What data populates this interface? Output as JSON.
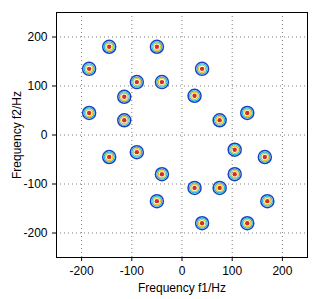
{
  "chart_data": {
    "type": "scatter",
    "xlabel": "Frequency f1/Hz",
    "ylabel": "Frequency f2/Hz",
    "x": [
      -145,
      -50,
      40,
      -185,
      -90,
      -40,
      25,
      -115,
      -185,
      -115,
      130,
      75,
      105,
      -90,
      -145,
      165,
      105,
      -40,
      170,
      -50,
      25,
      75,
      40,
      130
    ],
    "values": [
      180,
      180,
      135,
      135,
      108,
      108,
      80,
      78,
      45,
      30,
      45,
      30,
      -30,
      -35,
      -45,
      -45,
      -80,
      -80,
      -135,
      -135,
      -108,
      -108,
      -180,
      -180
    ],
    "xlim": [
      -250,
      250
    ],
    "ylim": [
      -250,
      250
    ],
    "xticks": [
      -200,
      -100,
      0,
      100,
      200
    ],
    "yticks": [
      -200,
      -100,
      0,
      100,
      200
    ],
    "grid": true,
    "marker": "contour",
    "color": "#1f3fbf"
  }
}
